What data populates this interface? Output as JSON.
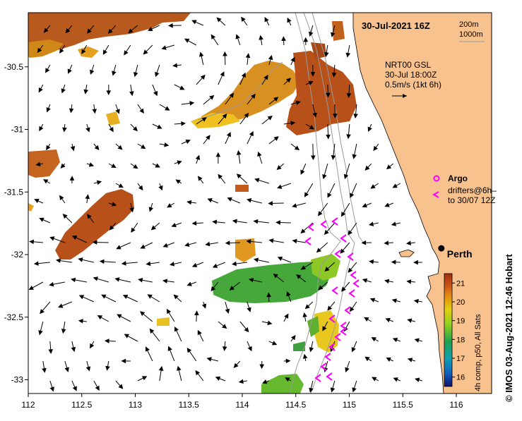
{
  "header": {
    "timestamp": "30-Jul-2021 16Z",
    "isobath_label_1": "200m",
    "isobath_label_2": "1000m"
  },
  "current_legend": {
    "line1": "NRT00 GSL",
    "line2": "30-Jul 18:00Z",
    "line3": "0.5m/s (1kt 6h)"
  },
  "markers_legend": {
    "argo": "Argo",
    "drifters_line1": "drifters@6h–",
    "drifters_line2": "to 30/07 12Z"
  },
  "city": {
    "name": "Perth",
    "lon": 115.86,
    "lat": -31.95
  },
  "colorbar": {
    "caption": "4h comp, p50, All Sats",
    "min": 15.5,
    "max": 21.5,
    "ticks": [
      "16",
      "17",
      "18",
      "19",
      "20",
      "21"
    ]
  },
  "credit": "©  IMOS 03-Aug-2021 12:46 Hobart",
  "axes": {
    "x_ticks": [
      "112",
      "112.5",
      "113",
      "113.5",
      "114",
      "114.5",
      "115",
      "115.5",
      "116"
    ],
    "y_ticks": [
      "-30.5",
      "-31",
      "-31.5",
      "-32",
      "-32.5",
      "-33"
    ],
    "lon_range": [
      112,
      116.3
    ],
    "lat_range": [
      -33.1,
      -30.1
    ]
  },
  "colors": {
    "land": "#f8c28e",
    "sst_warm": "#b8501a",
    "sst_mid": "#e0a010",
    "sst_cool": "#48b028",
    "drifter": "#ff00ff",
    "isobath": "#9a9a9a"
  }
}
